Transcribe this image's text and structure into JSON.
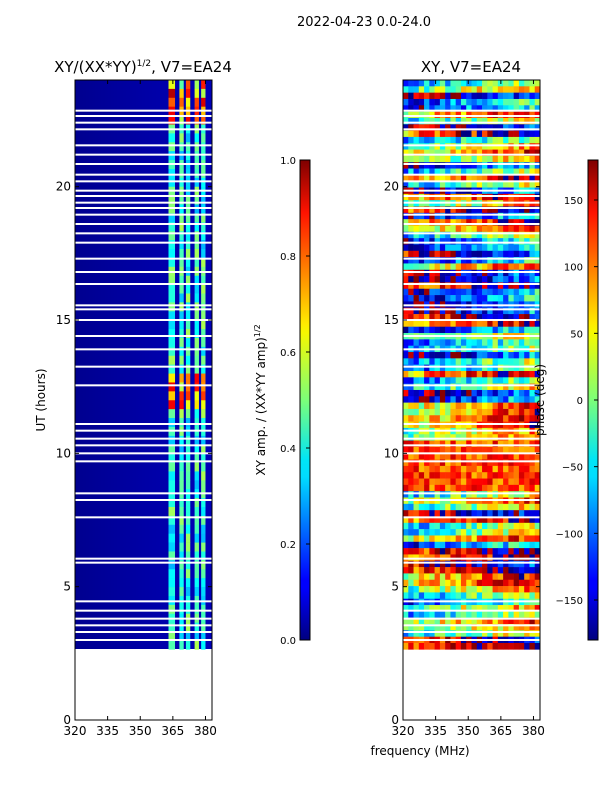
{
  "figure": {
    "suptitle": "2022-04-23 0.0-24.0",
    "shared_xlabel": "frequency (MHz)"
  },
  "chart_data": [
    {
      "type": "heatmap",
      "title_base": "XY/(XX*YY)",
      "title_exp": "1/2",
      "title_tail": ", V7=EA24",
      "xlabel": "",
      "ylabel": "UT (hours)",
      "xlim": [
        320,
        383
      ],
      "ylim": [
        0,
        24
      ],
      "xticks": [
        "320",
        "335",
        "350",
        "365",
        "380"
      ],
      "yticks": [
        "0",
        "5",
        "10",
        "15",
        "20"
      ],
      "data_start_hour": 2.65,
      "bright_channels_mhz": [
        [
          363,
          366
        ],
        [
          368,
          370
        ],
        [
          371,
          373
        ],
        [
          375,
          377
        ],
        [
          378,
          380
        ]
      ],
      "colorbar": {
        "label_base": "XY amp. / (XX*YY amp)",
        "label_exp": "1/2",
        "range": [
          0.0,
          1.0
        ],
        "ticks": [
          "0.0",
          "0.2",
          "0.4",
          "0.6",
          "0.8",
          "1.0"
        ],
        "colormap": "jet"
      }
    },
    {
      "type": "heatmap",
      "title": "XY, V7=EA24",
      "xlabel": "frequency (MHz)",
      "ylabel": "",
      "xlim": [
        320,
        383
      ],
      "ylim": [
        0,
        24
      ],
      "xticks": [
        "320",
        "335",
        "350",
        "365",
        "380"
      ],
      "yticks": [
        "0",
        "5",
        "10",
        "15",
        "20"
      ],
      "data_start_hour": 2.65,
      "colorbar": {
        "label": "phase (deg)",
        "range": [
          -180,
          180
        ],
        "ticks": [
          "−150",
          "−100",
          "−50",
          "0",
          "50",
          "100",
          "150"
        ],
        "tick_values": [
          -150,
          -100,
          -50,
          0,
          50,
          100,
          150
        ],
        "colormap": "jet"
      }
    }
  ],
  "flag_gaps_hours": [
    3.0,
    3.3,
    3.55,
    3.8,
    4.1,
    4.45,
    5.9,
    6.05,
    7.6,
    8.25,
    8.5,
    9.7,
    10.0,
    10.3,
    10.55,
    10.85,
    11.1,
    12.55,
    13.25,
    13.9,
    14.4,
    15.0,
    15.4,
    15.55,
    16.35,
    16.8,
    17.3,
    17.9,
    18.25,
    18.6,
    18.95,
    19.2,
    19.4,
    19.65,
    19.85,
    20.2,
    20.45,
    20.85,
    21.2,
    21.55,
    22.15,
    22.4,
    22.65,
    22.85
  ]
}
